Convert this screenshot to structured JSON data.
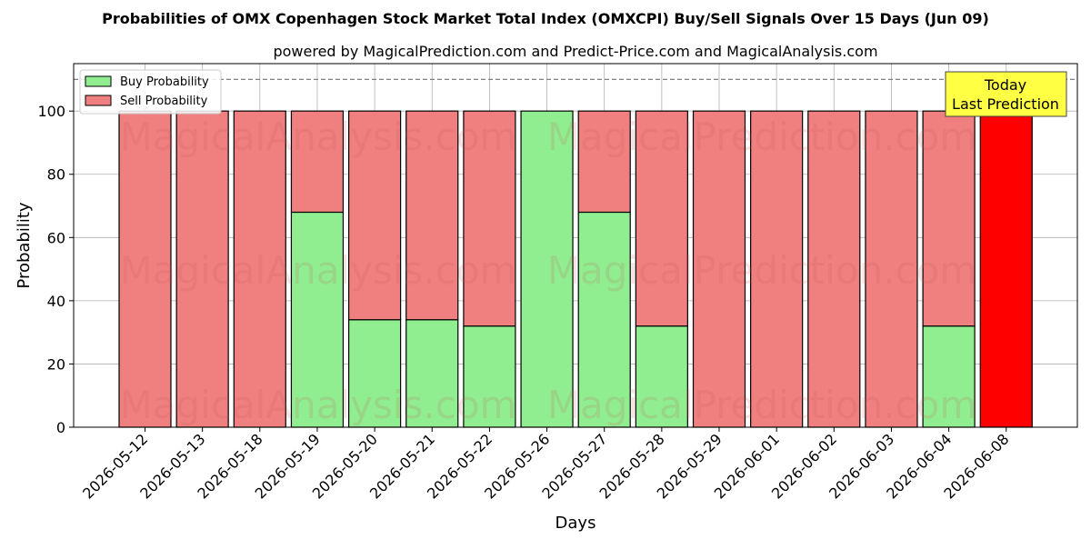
{
  "chart_data": {
    "type": "bar",
    "title": "Probabilities of OMX Copenhagen Stock Market Total Index (OMXCPI) Buy/Sell Signals Over 15 Days (Jun 09)",
    "subtitle": "powered by MagicalPrediction.com and Predict-Price.com and MagicalAnalysis.com",
    "xlabel": "Days",
    "ylabel": "Probability",
    "ylim": [
      0,
      115
    ],
    "yticks": [
      0,
      20,
      40,
      60,
      80,
      100
    ],
    "grid": true,
    "legend_position": "top-left",
    "reference_line": 110,
    "categories": [
      "2026-05-12",
      "2026-05-13",
      "2026-05-18",
      "2026-05-19",
      "2026-05-20",
      "2026-05-21",
      "2026-05-22",
      "2026-05-26",
      "2026-05-27",
      "2026-05-28",
      "2026-05-29",
      "2026-06-01",
      "2026-06-02",
      "2026-06-03",
      "2026-06-04",
      "2026-06-08"
    ],
    "series": [
      {
        "name": "Buy Probability",
        "color": "#90ee90",
        "values": [
          0,
          0,
          0,
          68,
          34,
          34,
          32,
          100,
          68,
          32,
          0,
          0,
          0,
          0,
          32,
          0
        ]
      },
      {
        "name": "Sell Probability",
        "color": "#f08080",
        "values": [
          100,
          100,
          100,
          32,
          66,
          66,
          68,
          0,
          32,
          68,
          100,
          100,
          100,
          100,
          68,
          100
        ]
      }
    ],
    "highlight": {
      "category": "2026-06-08",
      "color": "#ff0000"
    },
    "annotation": {
      "lines": [
        "Today",
        "Last Prediction"
      ],
      "background": "#ffff44"
    },
    "watermarks": [
      "MagicalAnalysis.com",
      "MagicalPrediction.com"
    ]
  }
}
